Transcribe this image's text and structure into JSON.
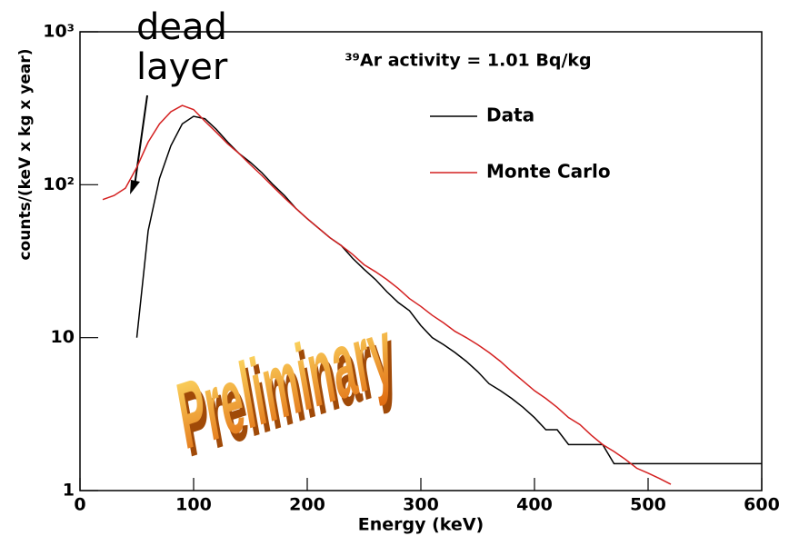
{
  "chart_data": {
    "type": "line",
    "xlabel": "Energy (keV)",
    "ylabel": "counts/(keV x kg x year)",
    "annotations": {
      "activity": "³⁹Ar activity = 1.01 Bq/kg",
      "dead_layer": "dead layer",
      "watermark": "Preliminary"
    },
    "x": [
      20,
      30,
      40,
      50,
      60,
      70,
      80,
      90,
      100,
      110,
      120,
      130,
      140,
      150,
      160,
      170,
      180,
      190,
      200,
      210,
      220,
      230,
      240,
      250,
      260,
      270,
      280,
      290,
      300,
      310,
      320,
      330,
      340,
      350,
      360,
      370,
      380,
      390,
      400,
      410,
      420,
      430,
      440,
      450,
      460,
      470,
      480,
      490,
      500,
      510,
      520,
      530,
      540,
      550,
      560,
      570,
      580,
      590,
      600
    ],
    "series": [
      {
        "name": "Data",
        "color": "#000000",
        "values": [
          null,
          null,
          null,
          10,
          50,
          110,
          180,
          250,
          280,
          270,
          230,
          190,
          160,
          140,
          120,
          100,
          85,
          70,
          60,
          52,
          45,
          40,
          33,
          28,
          24,
          20,
          17,
          15,
          12,
          10,
          9,
          8,
          7,
          6,
          5,
          4.5,
          4,
          3.5,
          3,
          2.5,
          2.5,
          2,
          2,
          2,
          2,
          1.5,
          1.5,
          1.5,
          1.5,
          1.5,
          1.5,
          1.5,
          1.5,
          1.5,
          1.5,
          1.5,
          1.5,
          1.5,
          1.5
        ]
      },
      {
        "name": "Monte Carlo",
        "color": "#d42020",
        "values": [
          80,
          85,
          95,
          130,
          190,
          250,
          300,
          330,
          310,
          260,
          220,
          185,
          160,
          135,
          115,
          97,
          82,
          70,
          60,
          52,
          45,
          40,
          35,
          30,
          27,
          24,
          21,
          18,
          16,
          14,
          12.5,
          11,
          10,
          9,
          8,
          7,
          6,
          5.2,
          4.5,
          4,
          3.5,
          3,
          2.7,
          2.3,
          2,
          1.8,
          1.6,
          1.4,
          1.3,
          1.2,
          1.1,
          null,
          null,
          null,
          null,
          null,
          null,
          null,
          null
        ]
      }
    ],
    "xlim": [
      0,
      600
    ],
    "xticks": [
      0,
      100,
      200,
      300,
      400,
      500,
      600
    ],
    "ylim": [
      1,
      1000
    ],
    "log_y": true,
    "yticks": [
      {
        "value": 1,
        "label": "1"
      },
      {
        "value": 10,
        "label": "10"
      },
      {
        "value": 100,
        "label": "10²"
      },
      {
        "value": 1000,
        "label": "10³"
      }
    ],
    "legend": "upper right"
  }
}
